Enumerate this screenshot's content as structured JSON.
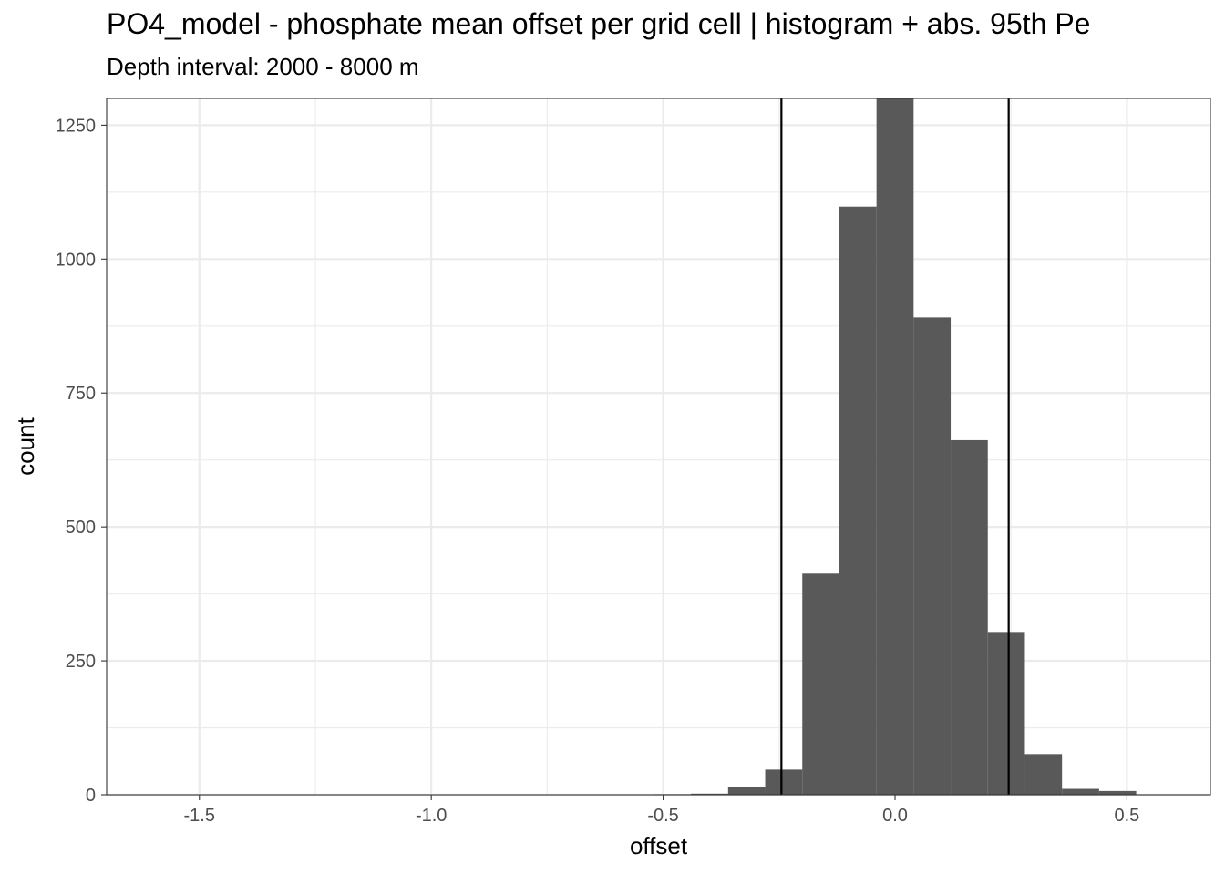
{
  "title": "PO4_model  -  phosphate mean offset per grid cell | histogram + abs. 95th Pe",
  "subtitle": "Depth interval: 2000 - 8000 m",
  "chart_data": {
    "type": "bar",
    "xlabel": "offset",
    "ylabel": "count",
    "xlim": [
      -1.7,
      0.68
    ],
    "ylim": [
      0,
      1300
    ],
    "x_ticks": [
      -1.5,
      -1.0,
      -0.5,
      0.0,
      0.5
    ],
    "x_tick_labels": [
      "-1.5",
      "-1.0",
      "-0.5",
      "0.0",
      "0.5"
    ],
    "y_ticks": [
      0,
      250,
      500,
      750,
      1000,
      1250
    ],
    "y_tick_labels": [
      "0",
      "250",
      "500",
      "750",
      "1000",
      "1250"
    ],
    "bin_width": 0.08,
    "bins": [
      {
        "x0": -0.52,
        "x1": -0.44,
        "count": 1
      },
      {
        "x0": -0.44,
        "x1": -0.36,
        "count": 2
      },
      {
        "x0": -0.36,
        "x1": -0.28,
        "count": 15
      },
      {
        "x0": -0.28,
        "x1": -0.2,
        "count": 47
      },
      {
        "x0": -0.2,
        "x1": -0.12,
        "count": 413
      },
      {
        "x0": -0.12,
        "x1": -0.04,
        "count": 1098
      },
      {
        "x0": -0.04,
        "x1": 0.04,
        "count": 1300
      },
      {
        "x0": 0.04,
        "x1": 0.12,
        "count": 891
      },
      {
        "x0": 0.12,
        "x1": 0.2,
        "count": 662
      },
      {
        "x0": 0.2,
        "x1": 0.28,
        "count": 304
      },
      {
        "x0": 0.28,
        "x1": 0.36,
        "count": 76
      },
      {
        "x0": 0.36,
        "x1": 0.44,
        "count": 11
      },
      {
        "x0": 0.44,
        "x1": 0.52,
        "count": 7
      }
    ],
    "vlines": [
      -0.245,
      0.245
    ],
    "grid": true,
    "colors": {
      "bar": "#595959",
      "vline": "#000000",
      "grid": "#ebebeb",
      "panel_border": "#333333"
    }
  }
}
